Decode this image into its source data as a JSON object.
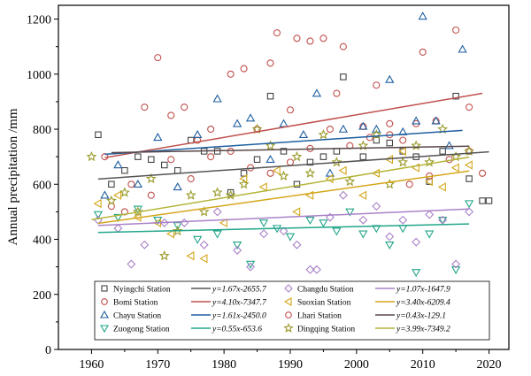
{
  "chart_data": {
    "type": "scatter",
    "ylabel": "Annual precipitation /mm",
    "xlabel": "",
    "xlim": [
      1955,
      2023
    ],
    "ylim": [
      0,
      1250
    ],
    "xticks": [
      1960,
      1970,
      1980,
      1990,
      2000,
      2010,
      2020
    ],
    "yticks": [
      0,
      200,
      400,
      600,
      800,
      1000,
      1200
    ],
    "grid": false,
    "legend_position": "bottom-center",
    "series": [
      {
        "name": "Nyingchi Station",
        "marker": "square",
        "color": "#444444",
        "fit_label": "y=1.67x-2655.7",
        "fit_color": "#555555",
        "slope": 1.67,
        "intercept": -2655.7,
        "points": [
          [
            1961,
            780
          ],
          [
            1963,
            600
          ],
          [
            1965,
            650
          ],
          [
            1967,
            700
          ],
          [
            1969,
            690
          ],
          [
            1971,
            670
          ],
          [
            1973,
            650
          ],
          [
            1975,
            760
          ],
          [
            1977,
            720
          ],
          [
            1979,
            720
          ],
          [
            1981,
            570
          ],
          [
            1983,
            640
          ],
          [
            1985,
            690
          ],
          [
            1987,
            920
          ],
          [
            1989,
            720
          ],
          [
            1991,
            600
          ],
          [
            1993,
            680
          ],
          [
            1995,
            700
          ],
          [
            1997,
            720
          ],
          [
            1998,
            990
          ],
          [
            2001,
            700
          ],
          [
            2003,
            760
          ],
          [
            2005,
            750
          ],
          [
            2007,
            720
          ],
          [
            2009,
            700
          ],
          [
            2011,
            610
          ],
          [
            2013,
            720
          ],
          [
            2015,
            920
          ],
          [
            2017,
            620
          ],
          [
            2019,
            540
          ],
          [
            2020,
            540
          ]
        ]
      },
      {
        "name": "Bomi Station",
        "marker": "circle",
        "color": "#c0504d",
        "fit_label": "y=4.10x-7347.7",
        "fit_color": "#c0504d",
        "slope": 4.1,
        "intercept": -7347.7,
        "points": [
          [
            1962,
            700
          ],
          [
            1965,
            500
          ],
          [
            1968,
            880
          ],
          [
            1970,
            1060
          ],
          [
            1972,
            850
          ],
          [
            1974,
            880
          ],
          [
            1976,
            760
          ],
          [
            1978,
            800
          ],
          [
            1981,
            1000
          ],
          [
            1983,
            1020
          ],
          [
            1985,
            800
          ],
          [
            1987,
            1040
          ],
          [
            1988,
            1150
          ],
          [
            1990,
            870
          ],
          [
            1991,
            1130
          ],
          [
            1993,
            1120
          ],
          [
            1995,
            1130
          ],
          [
            1997,
            930
          ],
          [
            1998,
            1100
          ],
          [
            2001,
            810
          ],
          [
            2003,
            960
          ],
          [
            2005,
            780
          ],
          [
            2007,
            760
          ],
          [
            2009,
            820
          ],
          [
            2010,
            1080
          ],
          [
            2012,
            830
          ],
          [
            2015,
            1160
          ],
          [
            2017,
            880
          ],
          [
            2019,
            640
          ]
        ]
      },
      {
        "name": "Chayu Station",
        "marker": "triangle-up",
        "color": "#1f5fa0",
        "fit_label": "y=1.61x-2450.0",
        "fit_color": "#1f5fa0",
        "slope": 1.61,
        "intercept": -2450.0,
        "points": [
          [
            1962,
            560
          ],
          [
            1964,
            670
          ],
          [
            1967,
            600
          ],
          [
            1970,
            770
          ],
          [
            1973,
            590
          ],
          [
            1976,
            780
          ],
          [
            1979,
            910
          ],
          [
            1982,
            820
          ],
          [
            1984,
            840
          ],
          [
            1987,
            690
          ],
          [
            1989,
            820
          ],
          [
            1992,
            780
          ],
          [
            1994,
            930
          ],
          [
            1996,
            640
          ],
          [
            1998,
            800
          ],
          [
            2001,
            810
          ],
          [
            2003,
            800
          ],
          [
            2005,
            980
          ],
          [
            2007,
            790
          ],
          [
            2009,
            830
          ],
          [
            2010,
            1210
          ],
          [
            2012,
            830
          ],
          [
            2014,
            740
          ],
          [
            2016,
            1090
          ]
        ]
      },
      {
        "name": "Zuogong Station",
        "marker": "triangle-down",
        "color": "#22a58a",
        "fit_label": "y=0.55x-653.6",
        "fit_color": "#22a58a",
        "slope": 0.55,
        "intercept": -653.6,
        "points": [
          [
            1961,
            490
          ],
          [
            1964,
            480
          ],
          [
            1967,
            510
          ],
          [
            1970,
            470
          ],
          [
            1973,
            450
          ],
          [
            1976,
            400
          ],
          [
            1979,
            420
          ],
          [
            1982,
            380
          ],
          [
            1984,
            310
          ],
          [
            1986,
            460
          ],
          [
            1988,
            440
          ],
          [
            1990,
            410
          ],
          [
            1993,
            470
          ],
          [
            1995,
            460
          ],
          [
            1997,
            430
          ],
          [
            1999,
            500
          ],
          [
            2001,
            420
          ],
          [
            2003,
            440
          ],
          [
            2005,
            380
          ],
          [
            2007,
            440
          ],
          [
            2009,
            280
          ],
          [
            2011,
            420
          ],
          [
            2013,
            470
          ],
          [
            2015,
            290
          ],
          [
            2017,
            530
          ]
        ]
      },
      {
        "name": "Changdu Station",
        "marker": "diamond",
        "color": "#a982c7",
        "fit_label": "y=1.07x-1647.9",
        "fit_color": "#a982c7",
        "slope": 1.07,
        "intercept": -1647.9,
        "points": [
          [
            1961,
            470
          ],
          [
            1964,
            440
          ],
          [
            1966,
            310
          ],
          [
            1968,
            380
          ],
          [
            1971,
            460
          ],
          [
            1974,
            460
          ],
          [
            1977,
            380
          ],
          [
            1979,
            500
          ],
          [
            1982,
            360
          ],
          [
            1984,
            300
          ],
          [
            1986,
            420
          ],
          [
            1989,
            430
          ],
          [
            1991,
            380
          ],
          [
            1993,
            290
          ],
          [
            1994,
            290
          ],
          [
            1996,
            480
          ],
          [
            1998,
            560
          ],
          [
            2001,
            470
          ],
          [
            2003,
            520
          ],
          [
            2005,
            410
          ],
          [
            2007,
            470
          ],
          [
            2009,
            390
          ],
          [
            2011,
            490
          ],
          [
            2013,
            470
          ],
          [
            2015,
            310
          ],
          [
            2017,
            500
          ]
        ]
      },
      {
        "name": "Suoxian Station",
        "marker": "triangle-left",
        "color": "#d4a61a",
        "fit_label": "y=3.40x-6209.4",
        "fit_color": "#d4a61a",
        "slope": 3.4,
        "intercept": -6209.4,
        "points": [
          [
            1961,
            530
          ],
          [
            1964,
            560
          ],
          [
            1967,
            480
          ],
          [
            1970,
            460
          ],
          [
            1972,
            420
          ],
          [
            1975,
            340
          ],
          [
            1977,
            330
          ],
          [
            1980,
            460
          ],
          [
            1983,
            620
          ],
          [
            1986,
            590
          ],
          [
            1988,
            650
          ],
          [
            1991,
            500
          ],
          [
            1993,
            560
          ],
          [
            1996,
            620
          ],
          [
            1998,
            650
          ],
          [
            2001,
            560
          ],
          [
            2003,
            640
          ],
          [
            2005,
            690
          ],
          [
            2007,
            720
          ],
          [
            2009,
            660
          ],
          [
            2011,
            610
          ],
          [
            2013,
            590
          ],
          [
            2015,
            660
          ],
          [
            2017,
            670
          ]
        ]
      },
      {
        "name": "Lhari Station",
        "marker": "circle",
        "color": "#c0504d",
        "fit_label": "y=0.43x-129.1",
        "fit_color": "#5a4848",
        "slope": 0.43,
        "intercept": -129.1,
        "points": [
          [
            1963,
            520
          ],
          [
            1966,
            600
          ],
          [
            1969,
            560
          ],
          [
            1972,
            690
          ],
          [
            1975,
            620
          ],
          [
            1978,
            700
          ],
          [
            1981,
            720
          ],
          [
            1984,
            660
          ],
          [
            1987,
            640
          ],
          [
            1990,
            680
          ],
          [
            1993,
            730
          ],
          [
            1996,
            800
          ],
          [
            1999,
            740
          ],
          [
            2002,
            770
          ],
          [
            2005,
            820
          ],
          [
            2008,
            600
          ],
          [
            2011,
            630
          ],
          [
            2014,
            690
          ],
          [
            2017,
            720
          ]
        ]
      },
      {
        "name": "Dingqing Station",
        "marker": "star",
        "color": "#9a9a2a",
        "fit_label": "y=3.99x-7349.2",
        "fit_color": "#b4b43a",
        "slope": 3.99,
        "intercept": -7349.2,
        "points": [
          [
            1960,
            700
          ],
          [
            1963,
            540
          ],
          [
            1965,
            570
          ],
          [
            1967,
            500
          ],
          [
            1969,
            620
          ],
          [
            1971,
            340
          ],
          [
            1973,
            430
          ],
          [
            1975,
            560
          ],
          [
            1977,
            500
          ],
          [
            1979,
            570
          ],
          [
            1981,
            560
          ],
          [
            1983,
            600
          ],
          [
            1985,
            800
          ],
          [
            1987,
            740
          ],
          [
            1989,
            630
          ],
          [
            1991,
            700
          ],
          [
            1993,
            640
          ],
          [
            1995,
            780
          ],
          [
            1997,
            680
          ],
          [
            1999,
            610
          ],
          [
            2001,
            740
          ],
          [
            2003,
            780
          ],
          [
            2005,
            600
          ],
          [
            2007,
            680
          ],
          [
            2009,
            740
          ],
          [
            2011,
            680
          ],
          [
            2013,
            800
          ],
          [
            2015,
            700
          ],
          [
            2017,
            720
          ]
        ]
      }
    ]
  }
}
